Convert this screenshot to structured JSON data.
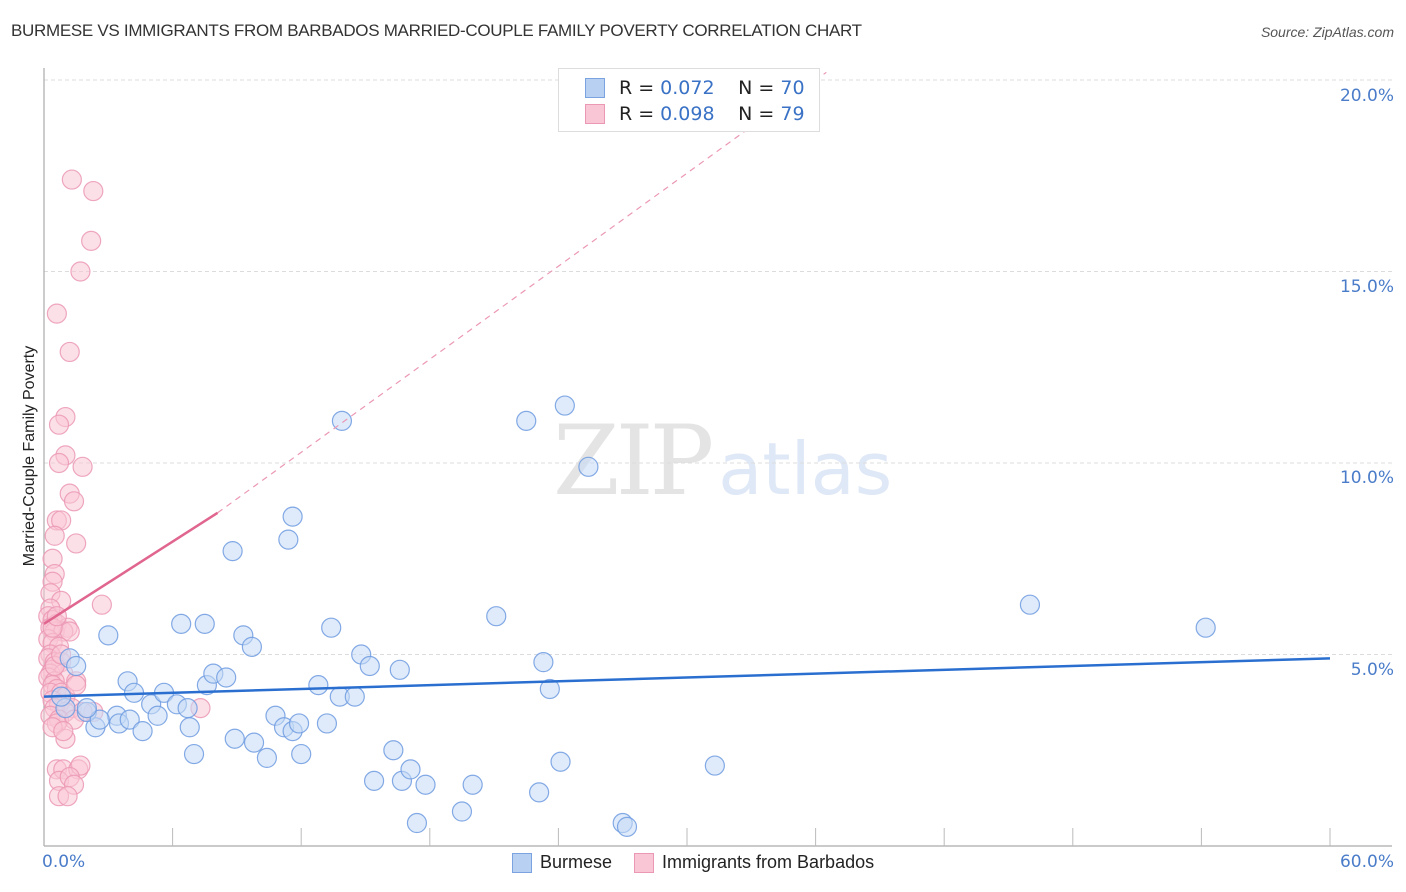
{
  "header": {
    "title": "BURMESE VS IMMIGRANTS FROM BARBADOS MARRIED-COUPLE FAMILY POVERTY CORRELATION CHART",
    "source": "Source: ZipAtlas.com"
  },
  "watermark": {
    "zip": "ZIP",
    "atlas": "atlas"
  },
  "legend": {
    "items": [
      {
        "r_label": "R =",
        "r_value": "0.072",
        "n_label": "N =",
        "n_value": "70",
        "fill": "#b8d0f2",
        "stroke": "#7aa3e0"
      },
      {
        "r_label": "R =",
        "r_value": "0.098",
        "n_label": "N =",
        "n_value": "79",
        "fill": "#f9c6d6",
        "stroke": "#eb98b4"
      }
    ]
  },
  "bottom_legend": [
    {
      "label": "Burmese",
      "fill": "#b8d0f2",
      "stroke": "#7aa3e0"
    },
    {
      "label": "Immigrants from Barbados",
      "fill": "#f9c6d6",
      "stroke": "#eb98b4"
    }
  ],
  "axes": {
    "y_label": "Married-Couple Family Poverty",
    "y_ticks": [
      "20.0%",
      "15.0%",
      "10.0%",
      "5.0%"
    ],
    "x_min_label": "0.0%",
    "x_max_label": "60.0%"
  },
  "chart_data": {
    "type": "scatter",
    "title": "BURMESE VS IMMIGRANTS FROM BARBADOS MARRIED-COUPLE FAMILY POVERTY CORRELATION CHART",
    "xlabel": "",
    "ylabel": "Married-Couple Family Poverty",
    "xlim": [
      0,
      60
    ],
    "ylim": [
      0,
      20.5
    ],
    "x_tick_labels": [
      "0.0%",
      "60.0%"
    ],
    "y_tick_labels": [
      "5.0%",
      "10.0%",
      "15.0%",
      "20.0%"
    ],
    "grid": {
      "horizontal_dashed": true,
      "vertical": false
    },
    "legend_position": "top-center",
    "series": [
      {
        "name": "Burmese",
        "color": "#7aa3e0",
        "R": 0.072,
        "N": 70,
        "trend": {
          "x": [
            0,
            60
          ],
          "y": [
            3.9,
            4.9
          ],
          "style": "solid",
          "color": "#2a6fd0"
        },
        "points": [
          [
            1.2,
            4.9
          ],
          [
            1.0,
            3.6
          ],
          [
            2.4,
            3.1
          ],
          [
            3.0,
            5.5
          ],
          [
            3.9,
            4.3
          ],
          [
            4.2,
            4.0
          ],
          [
            3.4,
            3.4
          ],
          [
            3.5,
            3.2
          ],
          [
            4.0,
            3.3
          ],
          [
            2.0,
            3.5
          ],
          [
            2.6,
            3.3
          ],
          [
            4.6,
            3.0
          ],
          [
            5.0,
            3.7
          ],
          [
            5.3,
            3.4
          ],
          [
            5.6,
            4.0
          ],
          [
            6.2,
            3.7
          ],
          [
            6.7,
            3.6
          ],
          [
            6.8,
            3.1
          ],
          [
            6.4,
            5.8
          ],
          [
            7.5,
            5.8
          ],
          [
            7.6,
            4.2
          ],
          [
            7.9,
            4.5
          ],
          [
            8.5,
            4.4
          ],
          [
            7.0,
            2.4
          ],
          [
            8.8,
            7.7
          ],
          [
            9.3,
            5.5
          ],
          [
            9.7,
            5.2
          ],
          [
            8.9,
            2.8
          ],
          [
            9.8,
            2.7
          ],
          [
            10.4,
            2.3
          ],
          [
            10.8,
            3.4
          ],
          [
            11.2,
            3.1
          ],
          [
            11.6,
            3.0
          ],
          [
            11.9,
            3.2
          ],
          [
            12.0,
            2.4
          ],
          [
            11.4,
            8.0
          ],
          [
            11.6,
            8.6
          ],
          [
            12.8,
            4.2
          ],
          [
            13.2,
            3.2
          ],
          [
            13.4,
            5.7
          ],
          [
            13.8,
            3.9
          ],
          [
            14.5,
            3.9
          ],
          [
            13.9,
            11.1
          ],
          [
            14.8,
            5.0
          ],
          [
            15.2,
            4.7
          ],
          [
            16.6,
            4.6
          ],
          [
            15.4,
            1.7
          ],
          [
            16.3,
            2.5
          ],
          [
            16.7,
            1.7
          ],
          [
            17.1,
            2.0
          ],
          [
            17.4,
            0.6
          ],
          [
            17.8,
            1.6
          ],
          [
            19.5,
            0.9
          ],
          [
            20.0,
            1.6
          ],
          [
            21.1,
            6.0
          ],
          [
            22.5,
            11.1
          ],
          [
            23.3,
            4.8
          ],
          [
            23.6,
            4.1
          ],
          [
            23.1,
            1.4
          ],
          [
            24.1,
            2.2
          ],
          [
            24.3,
            11.5
          ],
          [
            25.4,
            9.9
          ],
          [
            27.0,
            0.6
          ],
          [
            27.2,
            0.5
          ],
          [
            31.3,
            2.1
          ],
          [
            46.0,
            6.3
          ],
          [
            54.2,
            5.7
          ],
          [
            1.5,
            4.7
          ],
          [
            2.0,
            3.6
          ],
          [
            0.8,
            3.9
          ]
        ]
      },
      {
        "name": "Immigrants from Barbados",
        "color": "#eb98b4",
        "R": 0.098,
        "N": 79,
        "trend": {
          "x": [
            0,
            8.1
          ],
          "y": [
            5.8,
            8.7
          ],
          "style": "solid",
          "extension": {
            "x": [
              8.1,
              36.5
            ],
            "y": [
              8.7,
              20.2
            ],
            "style": "dashed"
          },
          "color": "#e06690"
        },
        "points": [
          [
            1.3,
            17.4
          ],
          [
            2.3,
            17.1
          ],
          [
            2.2,
            15.8
          ],
          [
            1.7,
            15.0
          ],
          [
            0.6,
            13.9
          ],
          [
            1.2,
            12.9
          ],
          [
            1.0,
            11.2
          ],
          [
            0.7,
            11.0
          ],
          [
            1.0,
            10.2
          ],
          [
            0.7,
            10.0
          ],
          [
            1.8,
            9.9
          ],
          [
            1.2,
            9.2
          ],
          [
            1.4,
            9.0
          ],
          [
            0.6,
            8.5
          ],
          [
            0.8,
            8.5
          ],
          [
            1.5,
            7.9
          ],
          [
            0.5,
            8.1
          ],
          [
            0.4,
            7.5
          ],
          [
            0.5,
            7.1
          ],
          [
            0.4,
            6.9
          ],
          [
            0.3,
            6.6
          ],
          [
            0.8,
            6.4
          ],
          [
            2.7,
            6.3
          ],
          [
            0.3,
            6.2
          ],
          [
            0.2,
            6.0
          ],
          [
            0.4,
            5.9
          ],
          [
            0.6,
            5.8
          ],
          [
            1.1,
            5.7
          ],
          [
            0.3,
            5.7
          ],
          [
            0.5,
            5.6
          ],
          [
            0.9,
            5.6
          ],
          [
            1.2,
            5.6
          ],
          [
            0.2,
            5.4
          ],
          [
            0.4,
            5.3
          ],
          [
            0.7,
            5.2
          ],
          [
            0.3,
            5.0
          ],
          [
            0.2,
            4.9
          ],
          [
            0.5,
            4.8
          ],
          [
            0.8,
            4.8
          ],
          [
            0.4,
            4.6
          ],
          [
            0.3,
            4.5
          ],
          [
            0.9,
            4.5
          ],
          [
            0.2,
            4.4
          ],
          [
            0.5,
            4.3
          ],
          [
            1.5,
            4.3
          ],
          [
            0.4,
            4.2
          ],
          [
            0.6,
            4.1
          ],
          [
            0.3,
            4.0
          ],
          [
            0.8,
            4.0
          ],
          [
            1.0,
            3.9
          ],
          [
            0.4,
            3.8
          ],
          [
            0.7,
            3.7
          ],
          [
            1.3,
            3.6
          ],
          [
            0.5,
            3.6
          ],
          [
            2.3,
            3.5
          ],
          [
            1.0,
            3.5
          ],
          [
            1.8,
            3.5
          ],
          [
            0.3,
            3.4
          ],
          [
            0.7,
            3.3
          ],
          [
            1.4,
            3.3
          ],
          [
            0.6,
            3.2
          ],
          [
            0.4,
            3.1
          ],
          [
            1.0,
            2.8
          ],
          [
            7.3,
            3.6
          ],
          [
            0.6,
            2.0
          ],
          [
            0.9,
            2.0
          ],
          [
            1.6,
            2.0
          ],
          [
            1.7,
            2.1
          ],
          [
            0.7,
            1.7
          ],
          [
            1.2,
            1.8
          ],
          [
            1.4,
            1.6
          ],
          [
            0.7,
            1.3
          ],
          [
            1.1,
            1.3
          ],
          [
            0.5,
            4.7
          ],
          [
            0.8,
            5.0
          ],
          [
            0.4,
            5.7
          ],
          [
            0.6,
            6.0
          ],
          [
            1.5,
            4.2
          ],
          [
            0.9,
            3.0
          ]
        ]
      }
    ]
  }
}
